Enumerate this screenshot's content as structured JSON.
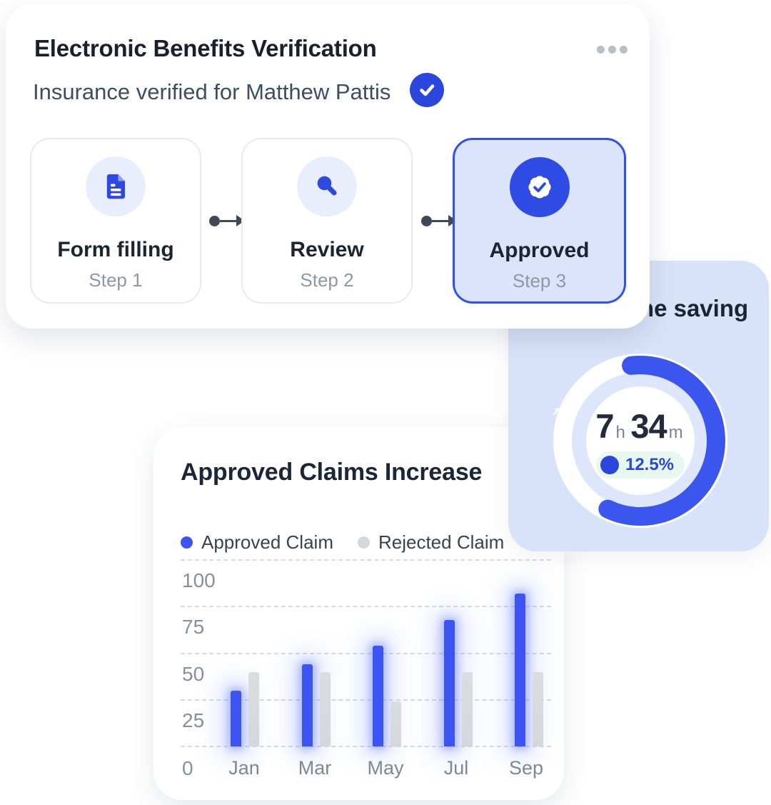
{
  "verification_card": {
    "title": "Electronic Benefits Verification",
    "subtitle": "Insurance verified for Matthew Pattis",
    "menu_icon": "ellipsis-icon",
    "verified_icon": "check-circle-icon",
    "steps": [
      {
        "label": "Form filling",
        "step_label": "Step 1",
        "icon": "document-icon",
        "state": "default"
      },
      {
        "label": "Review",
        "step_label": "Step 2",
        "icon": "search-icon",
        "state": "default"
      },
      {
        "label": "Approved",
        "step_label": "Step 3",
        "icon": "badge-check-icon",
        "state": "active"
      }
    ]
  },
  "time_saving_card": {
    "title": "Time saving",
    "hours": "7",
    "hours_unit": "h",
    "minutes": "34",
    "minutes_unit": "m",
    "delta_label": "12.5%",
    "delta_icon": "trend-up-arrow-icon",
    "progress_percent": 59
  },
  "chart_card": {
    "title": "Approved Claims Increase",
    "legend": [
      {
        "label": "Approved Claim",
        "color": "#3c55f2"
      },
      {
        "label": "Rejected Claim",
        "color": "#d4d7dc"
      }
    ]
  },
  "chart_data": {
    "type": "bar",
    "title": "Approved Claims Increase",
    "categories": [
      "Jan",
      "Mar",
      "May",
      "Jul",
      "Sep"
    ],
    "series": [
      {
        "name": "Approved Claim",
        "color": "#3c55f2",
        "values": [
          30,
          44,
          54,
          68,
          82
        ]
      },
      {
        "name": "Rejected Claim",
        "color": "#d4d7dc",
        "values": [
          40,
          40,
          24,
          40,
          40
        ]
      }
    ],
    "xlabel": "",
    "ylabel": "",
    "yticks": [
      0,
      25,
      50,
      75,
      100
    ],
    "ylim": [
      0,
      100
    ],
    "grid": "horizontal-dashed",
    "legend_position": "top-left"
  },
  "colors": {
    "primary_blue": "#2e4ce4",
    "check_badge_blue": "#2b46dd",
    "active_step_bg": "#dbe4fb",
    "active_step_border": "#2f53ea",
    "icon_circle_bg": "#e9eefc",
    "blue_card_bg": "#d8e2f8",
    "donut_track": "#dde6fb",
    "donut_arc": "#3b55ef",
    "mint_badge_bg": "#e7f8ee",
    "delta_text": "#2b46e0",
    "bar_blue": "#3c55f2",
    "bar_gray": "#d4d7dc",
    "dark_text": "#1b2433",
    "slate_text": "#3e4c66",
    "muted_text": "#8d97a7",
    "connector": "#3e4856"
  }
}
